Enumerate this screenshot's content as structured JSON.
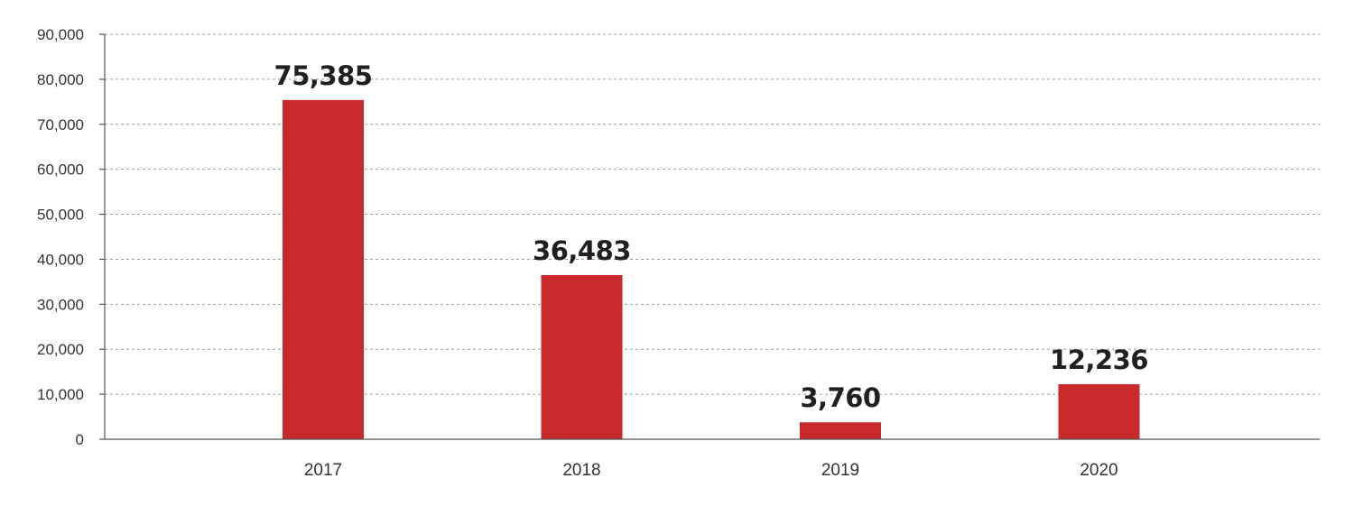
{
  "chart_data": {
    "type": "bar",
    "title": "",
    "xlabel": "",
    "ylabel": "",
    "categories": [
      "2017",
      "2018",
      "2019",
      "2020"
    ],
    "values": [
      75385,
      36483,
      3760,
      12236
    ],
    "data_labels": [
      "75,385",
      "36,483",
      "3,760",
      "12,236"
    ],
    "ylim": [
      0,
      90000
    ],
    "yticks": [
      0,
      10000,
      20000,
      30000,
      40000,
      50000,
      60000,
      70000,
      80000,
      90000
    ],
    "ytick_labels": [
      "0",
      "10,000",
      "20,000",
      "30,000",
      "40,000",
      "50,000",
      "60,000",
      "70,000",
      "80,000",
      "90,000"
    ],
    "grid": true,
    "legend": "none",
    "bar_color": "#c8292b"
  }
}
